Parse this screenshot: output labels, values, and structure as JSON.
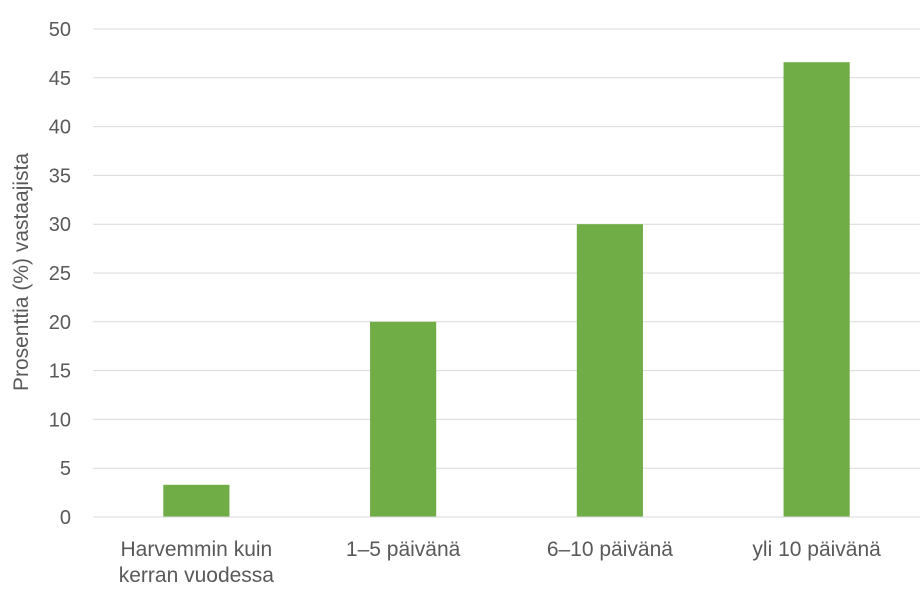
{
  "chart_data": {
    "type": "bar",
    "title": "",
    "xlabel": "",
    "ylabel": "Prosenttia (%) vastaajista",
    "categories": [
      [
        "Harvemmin kuin",
        "kerran vuodessa"
      ],
      [
        "1–5 päivänä"
      ],
      [
        "6–10 päivänä"
      ],
      [
        "yli 10 päivänä"
      ]
    ],
    "values": [
      3.3,
      20.0,
      30.0,
      46.6
    ],
    "ylim": [
      0,
      50
    ],
    "yticks": [
      0,
      5,
      10,
      15,
      20,
      25,
      30,
      35,
      40,
      45,
      50
    ],
    "grid": true,
    "bar_color": "#70AD47",
    "grid_color": "#D9D9D9",
    "text_color": "#595959"
  }
}
